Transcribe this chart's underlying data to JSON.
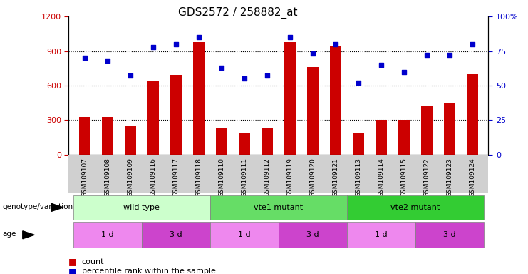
{
  "title": "GDS2572 / 258882_at",
  "samples": [
    "GSM109107",
    "GSM109108",
    "GSM109109",
    "GSM109116",
    "GSM109117",
    "GSM109118",
    "GSM109110",
    "GSM109111",
    "GSM109112",
    "GSM109119",
    "GSM109120",
    "GSM109121",
    "GSM109113",
    "GSM109114",
    "GSM109115",
    "GSM109122",
    "GSM109123",
    "GSM109124"
  ],
  "counts": [
    330,
    330,
    245,
    640,
    690,
    980,
    230,
    185,
    230,
    980,
    760,
    940,
    190,
    300,
    300,
    420,
    450,
    700
  ],
  "percentiles": [
    70,
    68,
    57,
    78,
    80,
    85,
    63,
    55,
    57,
    85,
    73,
    80,
    52,
    65,
    60,
    72,
    72,
    80
  ],
  "ylim_left": [
    0,
    1200
  ],
  "ylim_right": [
    0,
    100
  ],
  "yticks_left": [
    0,
    300,
    600,
    900,
    1200
  ],
  "yticks_right": [
    0,
    25,
    50,
    75,
    100
  ],
  "bar_color": "#cc0000",
  "dot_color": "#0000cc",
  "genotype_groups": [
    {
      "label": "wild type",
      "start": 0,
      "end": 6,
      "color": "#ccffcc"
    },
    {
      "label": "vte1 mutant",
      "start": 6,
      "end": 12,
      "color": "#66dd66"
    },
    {
      "label": "vte2 mutant",
      "start": 12,
      "end": 18,
      "color": "#33cc33"
    }
  ],
  "age_groups": [
    {
      "label": "1 d",
      "start": 0,
      "end": 3,
      "color": "#ee88ee"
    },
    {
      "label": "3 d",
      "start": 3,
      "end": 6,
      "color": "#cc44cc"
    },
    {
      "label": "1 d",
      "start": 6,
      "end": 9,
      "color": "#ee88ee"
    },
    {
      "label": "3 d",
      "start": 9,
      "end": 12,
      "color": "#cc44cc"
    },
    {
      "label": "1 d",
      "start": 12,
      "end": 15,
      "color": "#ee88ee"
    },
    {
      "label": "3 d",
      "start": 15,
      "end": 18,
      "color": "#cc44cc"
    }
  ],
  "tick_color_left": "#cc0000",
  "tick_color_right": "#0000cc",
  "xtick_bg_color": "#d0d0d0",
  "legend_count_color": "#cc0000",
  "legend_percentile_color": "#0000cc"
}
